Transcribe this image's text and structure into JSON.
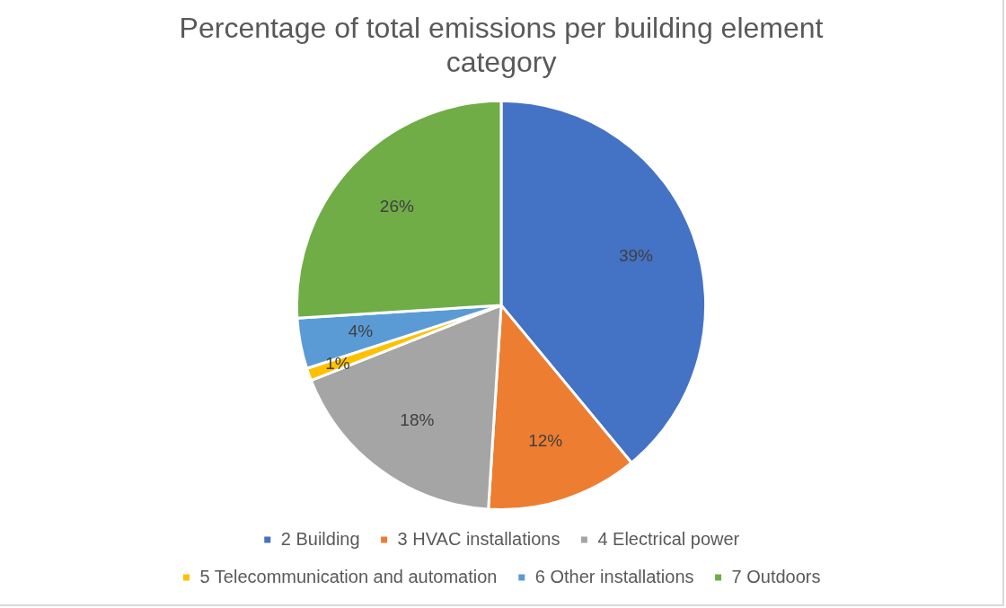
{
  "chart_data": {
    "type": "pie",
    "title": "Percentage of total emissions per building element category",
    "categories": [
      "2 Building",
      "3 HVAC installations",
      "4 Electrical power",
      "5 Telecommunication and automation",
      "6 Other installations",
      "7 Outdoors"
    ],
    "values": [
      39,
      12,
      18,
      1,
      4,
      26
    ],
    "colors": [
      "#4472c4",
      "#ed7d31",
      "#a5a5a5",
      "#ffc000",
      "#5b9bd5",
      "#70ad47"
    ],
    "value_labels": [
      "39%",
      "12%",
      "18%",
      "1%",
      "4%",
      "26%"
    ],
    "legend": "bottom"
  }
}
